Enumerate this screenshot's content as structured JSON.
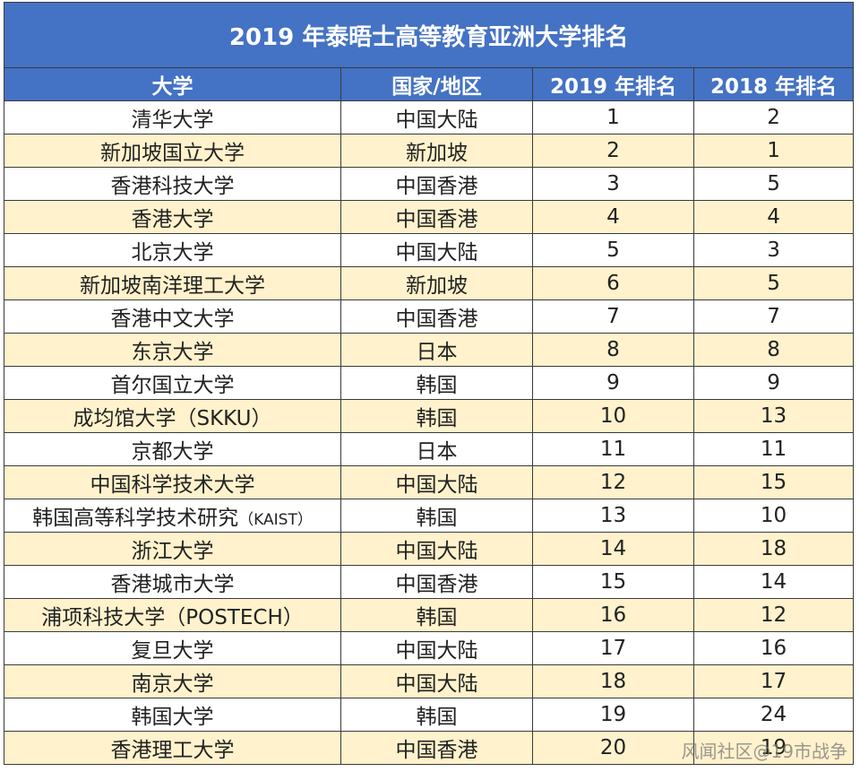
{
  "title": "2019 年泰晤士高等教育亚洲大学排名",
  "headers": [
    "大学",
    "国家/地区",
    "2019 年排名",
    "2018 年排名"
  ],
  "colors": {
    "header_bg": "#4472c4",
    "stripe": "#fff2cc"
  },
  "rows": [
    {
      "university": "清华大学",
      "region": "中国大陆",
      "rank_2019": "1",
      "rank_2018": "2"
    },
    {
      "university": "新加坡国立大学",
      "region": "新加坡",
      "rank_2019": "2",
      "rank_2018": "1"
    },
    {
      "university": "香港科技大学",
      "region": "中国香港",
      "rank_2019": "3",
      "rank_2018": "5"
    },
    {
      "university": "香港大学",
      "region": "中国香港",
      "rank_2019": "4",
      "rank_2018": "4"
    },
    {
      "university": "北京大学",
      "region": "中国大陆",
      "rank_2019": "5",
      "rank_2018": "3"
    },
    {
      "university": "新加坡南洋理工大学",
      "region": "新加坡",
      "rank_2019": "6",
      "rank_2018": "5"
    },
    {
      "university": "香港中文大学",
      "region": "中国香港",
      "rank_2019": "7",
      "rank_2018": "7"
    },
    {
      "university": "东京大学",
      "region": "日本",
      "rank_2019": "8",
      "rank_2018": "8"
    },
    {
      "university": "首尔国立大学",
      "region": "韩国",
      "rank_2019": "9",
      "rank_2018": "9"
    },
    {
      "university": "成均馆大学（SKKU）",
      "region": "韩国",
      "rank_2019": "10",
      "rank_2018": "13"
    },
    {
      "university": "京都大学",
      "region": "日本",
      "rank_2019": "11",
      "rank_2018": "11"
    },
    {
      "university": "中国科学技术大学",
      "region": "中国大陆",
      "rank_2019": "12",
      "rank_2018": "15"
    },
    {
      "university": "韩国高等科学技术研究",
      "university_suffix": "（KAIST）",
      "region": "韩国",
      "rank_2019": "13",
      "rank_2018": "10"
    },
    {
      "university": "浙江大学",
      "region": "中国大陆",
      "rank_2019": "14",
      "rank_2018": "18"
    },
    {
      "university": "香港城市大学",
      "region": "中国香港",
      "rank_2019": "15",
      "rank_2018": "14"
    },
    {
      "university": "浦项科技大学（POSTECH）",
      "region": "韩国",
      "rank_2019": "16",
      "rank_2018": "12"
    },
    {
      "university": "复旦大学",
      "region": "中国大陆",
      "rank_2019": "17",
      "rank_2018": "16"
    },
    {
      "university": "南京大学",
      "region": "中国大陆",
      "rank_2019": "18",
      "rank_2018": "17"
    },
    {
      "university": "韩国大学",
      "region": "韩国",
      "rank_2019": "19",
      "rank_2018": "24"
    },
    {
      "university": "香港理工大学",
      "region": "中国香港",
      "rank_2019": "20",
      "rank_2018": "19"
    }
  ],
  "watermark": "风闻社区@19市战争"
}
